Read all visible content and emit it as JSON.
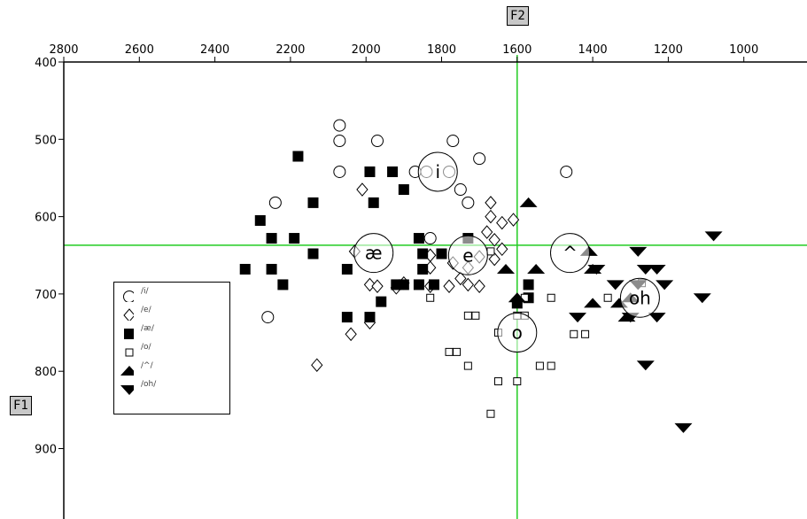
{
  "chart_data": {
    "type": "scatter",
    "title": "",
    "xlabel": "F2",
    "ylabel": "F1",
    "x_reversed": true,
    "xlim": [
      2800,
      850
    ],
    "ylim": [
      400,
      1000
    ],
    "xticks": [
      2800,
      2600,
      2400,
      2200,
      2000,
      1800,
      1600,
      1400,
      1200,
      1000
    ],
    "yticks": [
      400,
      500,
      600,
      700,
      800,
      900
    ],
    "crosshair": {
      "x": 1600,
      "y": 637,
      "color": "#22cc22"
    },
    "legend_position": "left-middle",
    "centroids": [
      {
        "label": "i",
        "x": 1810,
        "y": 542
      },
      {
        "label": "æ",
        "x": 1980,
        "y": 647
      },
      {
        "label": "e",
        "x": 1730,
        "y": 650
      },
      {
        "label": "^",
        "x": 1460,
        "y": 647
      },
      {
        "label": "oh",
        "x": 1275,
        "y": 705
      },
      {
        "label": "o",
        "x": 1600,
        "y": 750
      }
    ],
    "series": [
      {
        "name": "/i/",
        "marker": "circle-open",
        "points": [
          [
            2070,
            482
          ],
          [
            2070,
            502
          ],
          [
            1970,
            502
          ],
          [
            1770,
            502
          ],
          [
            2070,
            542
          ],
          [
            1870,
            542
          ],
          [
            1840,
            542
          ],
          [
            1700,
            525
          ],
          [
            1780,
            542
          ],
          [
            1750,
            565
          ],
          [
            1730,
            582
          ],
          [
            1470,
            542
          ],
          [
            2240,
            582
          ],
          [
            1830,
            628
          ],
          [
            2260,
            730
          ]
        ]
      },
      {
        "name": "/e/",
        "marker": "diamond-open",
        "points": [
          [
            2010,
            565
          ],
          [
            1670,
            582
          ],
          [
            1670,
            600
          ],
          [
            1640,
            608
          ],
          [
            1610,
            604
          ],
          [
            1680,
            620
          ],
          [
            1660,
            630
          ],
          [
            1640,
            642
          ],
          [
            1660,
            655
          ],
          [
            1770,
            660
          ],
          [
            1700,
            652
          ],
          [
            1730,
            666
          ],
          [
            1830,
            666
          ],
          [
            2030,
            645
          ],
          [
            1830,
            690
          ],
          [
            1780,
            690
          ],
          [
            1750,
            680
          ],
          [
            1730,
            688
          ],
          [
            1700,
            690
          ],
          [
            1990,
            688
          ],
          [
            1970,
            690
          ],
          [
            1920,
            692
          ],
          [
            1900,
            686
          ],
          [
            1990,
            737
          ],
          [
            2040,
            752
          ],
          [
            2130,
            792
          ],
          [
            1830,
            650
          ]
        ]
      },
      {
        "name": "/æ/",
        "marker": "square-filled",
        "points": [
          [
            2180,
            522
          ],
          [
            1990,
            542
          ],
          [
            1930,
            542
          ],
          [
            1900,
            565
          ],
          [
            1980,
            582
          ],
          [
            2140,
            582
          ],
          [
            2280,
            605
          ],
          [
            2250,
            628
          ],
          [
            2190,
            628
          ],
          [
            1860,
            628
          ],
          [
            1730,
            628
          ],
          [
            2140,
            648
          ],
          [
            1850,
            648
          ],
          [
            1800,
            648
          ],
          [
            2050,
            668
          ],
          [
            2320,
            668
          ],
          [
            2250,
            668
          ],
          [
            1850,
            668
          ],
          [
            2220,
            688
          ],
          [
            1920,
            688
          ],
          [
            1900,
            688
          ],
          [
            1860,
            688
          ],
          [
            1820,
            688
          ],
          [
            1960,
            710
          ],
          [
            2050,
            730
          ],
          [
            1990,
            730
          ],
          [
            1570,
            688
          ],
          [
            1570,
            705
          ],
          [
            1600,
            712
          ]
        ]
      },
      {
        "name": "/o/",
        "marker": "square-open",
        "points": [
          [
            1670,
            645
          ],
          [
            1830,
            705
          ],
          [
            1730,
            728
          ],
          [
            1710,
            728
          ],
          [
            1580,
            705
          ],
          [
            1510,
            705
          ],
          [
            1600,
            728
          ],
          [
            1580,
            728
          ],
          [
            1650,
            750
          ],
          [
            1450,
            752
          ],
          [
            1420,
            752
          ],
          [
            1360,
            705
          ],
          [
            1270,
            686
          ],
          [
            1780,
            775
          ],
          [
            1760,
            775
          ],
          [
            1730,
            793
          ],
          [
            1540,
            793
          ],
          [
            1510,
            793
          ],
          [
            1650,
            813
          ],
          [
            1600,
            813
          ],
          [
            1670,
            855
          ]
        ]
      },
      {
        "name": "/^/",
        "marker": "triangle-up-filled",
        "points": [
          [
            1570,
            582
          ],
          [
            1630,
            668
          ],
          [
            1550,
            668
          ],
          [
            1410,
            645
          ],
          [
            1400,
            668
          ],
          [
            1300,
            705
          ],
          [
            1330,
            712
          ],
          [
            1400,
            712
          ],
          [
            1600,
            705
          ],
          [
            1310,
            730
          ]
        ]
      },
      {
        "name": "/oh/",
        "marker": "triangle-down-filled",
        "points": [
          [
            1080,
            625
          ],
          [
            1280,
            645
          ],
          [
            1260,
            668
          ],
          [
            1230,
            668
          ],
          [
            1390,
            668
          ],
          [
            1340,
            688
          ],
          [
            1280,
            688
          ],
          [
            1210,
            688
          ],
          [
            1230,
            730
          ],
          [
            1300,
            730
          ],
          [
            1440,
            730
          ],
          [
            1110,
            705
          ],
          [
            1260,
            792
          ],
          [
            1160,
            873
          ]
        ]
      }
    ]
  }
}
